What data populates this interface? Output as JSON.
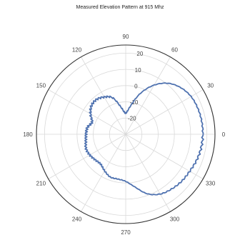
{
  "chart_data": {
    "type": "line",
    "subtype": "polar",
    "title": "Measured Elevation Pattern at 915 Mhz",
    "angle_unit": "degrees",
    "angle_ticks": [
      0,
      30,
      60,
      90,
      120,
      150,
      180,
      210,
      240,
      270,
      300,
      330
    ],
    "angle_tick_labels": [
      "0",
      "30",
      "60",
      "90",
      "120",
      "150",
      "180",
      "210",
      "240",
      "270",
      "300",
      "330"
    ],
    "radial_ticks": [
      -20,
      -10,
      0,
      10,
      20
    ],
    "radial_tick_labels": [
      "-20",
      "-10",
      "0",
      "10",
      "20"
    ],
    "rlim": [
      -30,
      25
    ],
    "grid": true,
    "legend": "none",
    "series": [
      {
        "color": "#4f72b0",
        "theta": [
          0,
          10,
          20,
          30,
          40,
          50,
          60,
          70,
          80,
          90,
          100,
          110,
          120,
          130,
          140,
          150,
          160,
          170,
          180,
          190,
          200,
          210,
          220,
          230,
          240,
          250,
          260,
          270,
          280,
          290,
          300,
          310,
          320,
          330,
          340,
          350,
          360
        ],
        "r": [
          17.5,
          17.5,
          17.2,
          16.5,
          14.5,
          11.0,
          5.0,
          -3.0,
          -12.0,
          -17.0,
          -13.0,
          -6.0,
          -3.5,
          -2.0,
          -2.5,
          -5.0,
          -8.0,
          -6.0,
          -5.5,
          -5.0,
          -4.0,
          -4.5,
          -5.5,
          -6.0,
          -4.0,
          -2.0,
          -2.0,
          -1.0,
          3.0,
          9.0,
          12.5,
          14.0,
          15.0,
          15.5,
          16.5,
          17.2,
          17.5
        ]
      }
    ]
  }
}
